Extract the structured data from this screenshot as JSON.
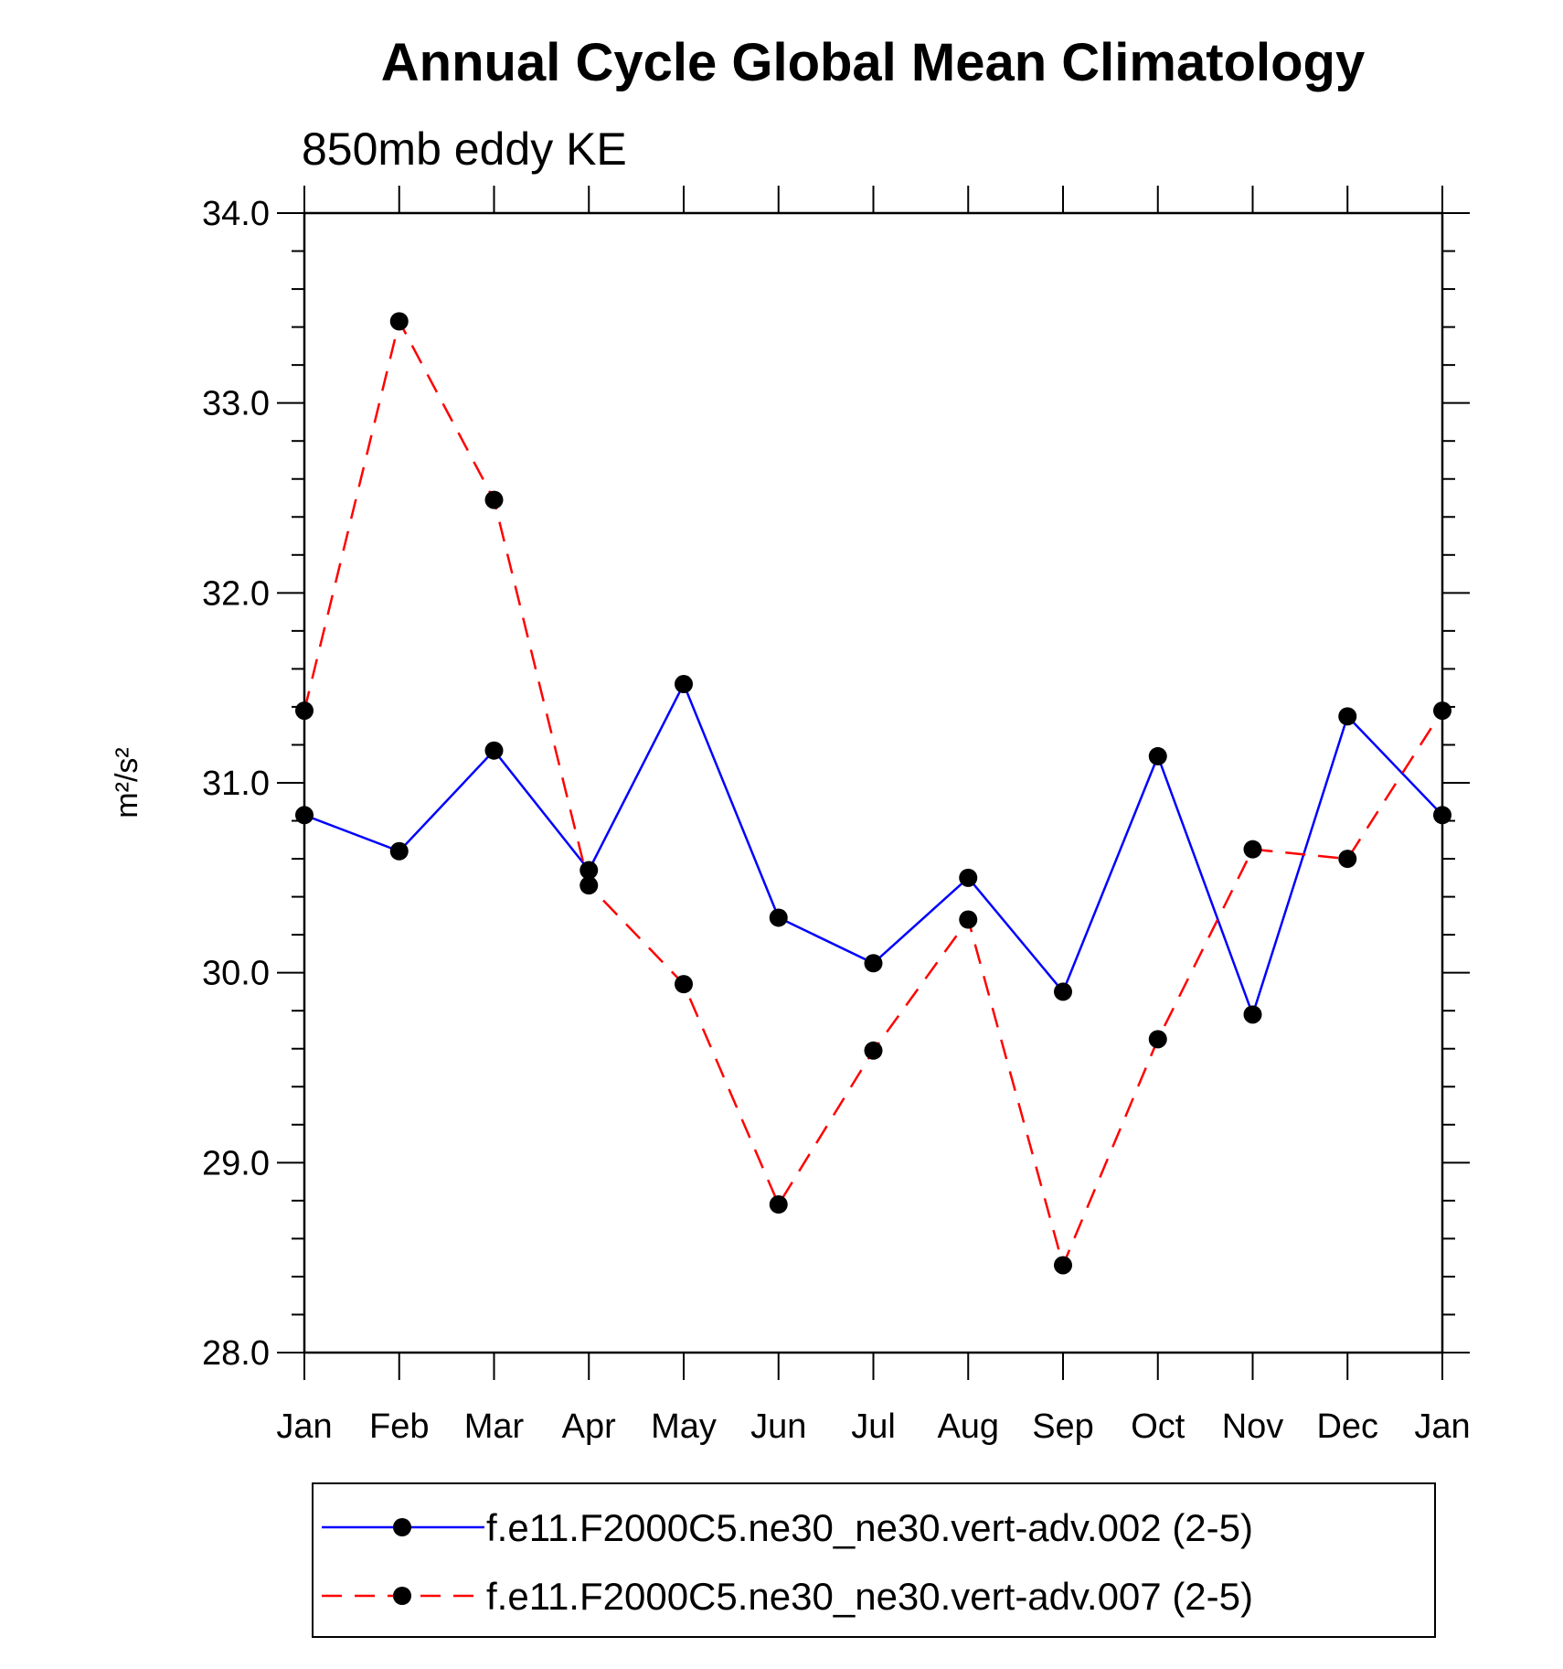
{
  "chart_data": {
    "type": "line",
    "title": "Annual Cycle Global Mean Climatology",
    "subtitle": "850mb eddy KE",
    "ylabel": "m²/s²",
    "xlabel": "",
    "categories": [
      "Jan",
      "Feb",
      "Mar",
      "Apr",
      "May",
      "Jun",
      "Jul",
      "Aug",
      "Sep",
      "Oct",
      "Nov",
      "Dec",
      "Jan"
    ],
    "ylim": [
      28.0,
      34.0
    ],
    "yticks": [
      "28.0",
      "29.0",
      "30.0",
      "31.0",
      "32.0",
      "33.0",
      "34.0"
    ],
    "series": [
      {
        "name": "f.e11.F2000C5.ne30_ne30.vert-adv.002 (2-5)",
        "color": "#0000ff",
        "dash": "solid",
        "values": [
          30.83,
          30.64,
          31.17,
          30.54,
          31.52,
          30.29,
          30.05,
          30.5,
          29.9,
          31.14,
          29.78,
          31.35,
          30.83
        ]
      },
      {
        "name": "f.e11.F2000C5.ne30_ne30.vert-adv.007 (2-5)",
        "color": "#ff0000",
        "dash": "dashed",
        "values": [
          31.38,
          33.43,
          32.49,
          30.46,
          29.94,
          28.78,
          29.59,
          30.28,
          28.46,
          29.65,
          30.65,
          30.6,
          31.38
        ]
      }
    ],
    "legend_position": "bottom"
  }
}
